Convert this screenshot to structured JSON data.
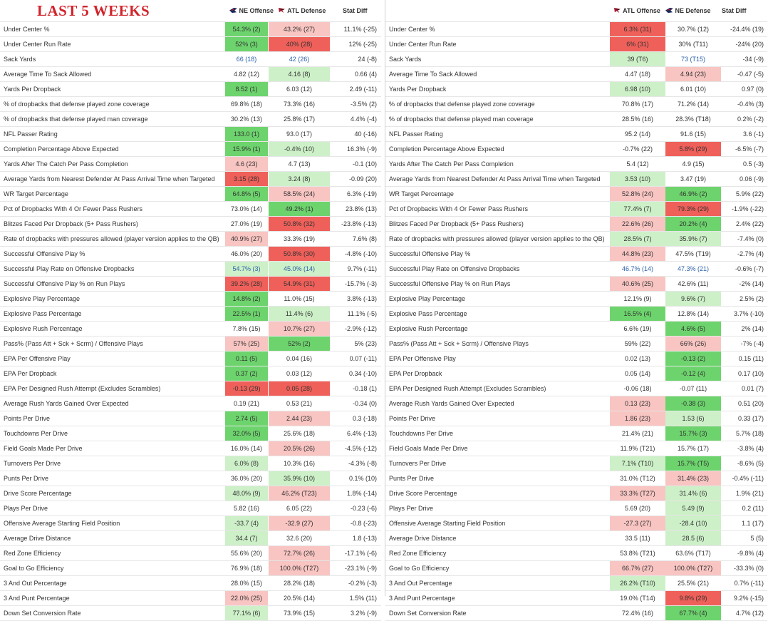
{
  "title": "LAST 5 WEEKS",
  "colors": {
    "dark_green": "#6dd46d",
    "light_green": "#cdf0c8",
    "dark_red": "#f0605a",
    "light_red": "#f8c5c2",
    "text_blue": "#2a5fa8"
  },
  "left": {
    "headers": {
      "offense": "NE Offense",
      "defense": "ATL Defense",
      "diff": "Stat Diff"
    },
    "rows": [
      {
        "label": "Under Center %",
        "off": "54.3% (2)",
        "off_c": "dg",
        "def": "43.2% (27)",
        "def_c": "lr",
        "diff": "11.1% (-25)"
      },
      {
        "label": "Under Center Run Rate",
        "off": "52% (3)",
        "off_c": "dg",
        "def": "40% (28)",
        "def_c": "dr",
        "diff": "12% (-25)"
      },
      {
        "label": "Sack Yards",
        "off": "66 (18)",
        "off_c": "",
        "off_blue": true,
        "def": "42 (26)",
        "def_c": "",
        "def_blue": true,
        "diff": "24 (-8)"
      },
      {
        "label": "Average Time To Sack Allowed",
        "off": "4.82 (12)",
        "off_c": "",
        "def": "4.16 (8)",
        "def_c": "lg",
        "diff": "0.66 (4)"
      },
      {
        "label": "Yards Per Dropback",
        "off": "8.52 (1)",
        "off_c": "dg",
        "def": "6.03 (12)",
        "def_c": "",
        "diff": "2.49 (-11)"
      },
      {
        "label": "% of dropbacks that defense played zone coverage",
        "off": "69.8% (18)",
        "off_c": "",
        "def": "73.3% (16)",
        "def_c": "",
        "diff": "-3.5% (2)"
      },
      {
        "label": "% of dropbacks that defense played man coverage",
        "off": "30.2% (13)",
        "off_c": "",
        "def": "25.8% (17)",
        "def_c": "",
        "diff": "4.4% (-4)"
      },
      {
        "label": "NFL Passer Rating",
        "off": "133.0 (1)",
        "off_c": "dg",
        "def": "93.0 (17)",
        "def_c": "",
        "diff": "40 (-16)"
      },
      {
        "label": "Completion Percentage Above Expected",
        "off": "15.9% (1)",
        "off_c": "dg",
        "def": "-0.4% (10)",
        "def_c": "lg",
        "diff": "16.3% (-9)"
      },
      {
        "label": "Yards After The Catch Per Pass Completion",
        "off": "4.6 (23)",
        "off_c": "lr",
        "def": "4.7 (13)",
        "def_c": "",
        "diff": "-0.1 (10)"
      },
      {
        "label": "Average Yards from Nearest Defender At Pass Arrival Time when Targeted",
        "off": "3.15 (28)",
        "off_c": "dr",
        "def": "3.24 (8)",
        "def_c": "lg",
        "diff": "-0.09 (20)"
      },
      {
        "label": "WR Target Percentage",
        "off": "64.8% (5)",
        "off_c": "dg",
        "def": "58.5% (24)",
        "def_c": "lr",
        "diff": "6.3% (-19)"
      },
      {
        "label": "Pct of Dropbacks With 4 Or Fewer Pass Rushers",
        "off": "73.0% (14)",
        "off_c": "",
        "def": "49.2% (1)",
        "def_c": "dg",
        "diff": "23.8% (13)"
      },
      {
        "label": "Blitzes Faced Per Dropback (5+ Pass Rushers)",
        "off": "27.0% (19)",
        "off_c": "",
        "def": "50.8% (32)",
        "def_c": "dr",
        "diff": "-23.8% (-13)"
      },
      {
        "label": "Rate of dropbacks with pressures allowed (player version applies to the QB)",
        "off": "40.9% (27)",
        "off_c": "lr",
        "def": "33.3% (19)",
        "def_c": "",
        "diff": "7.6% (8)"
      },
      {
        "label": "Successful Offensive Play %",
        "off": "46.0% (20)",
        "off_c": "",
        "def": "50.8% (30)",
        "def_c": "dr",
        "diff": "-4.8% (-10)"
      },
      {
        "label": "Successful Play Rate on Offensive Dropbacks",
        "off": "54.7% (3)",
        "off_c": "lg",
        "off_blue": true,
        "def": "45.0% (14)",
        "def_c": "lg",
        "def_blue": true,
        "diff": "9.7% (-11)"
      },
      {
        "label": "Successful Offensive Play % on Run Plays",
        "off": "39.2% (28)",
        "off_c": "dr",
        "def": "54.9% (31)",
        "def_c": "dr",
        "diff": "-15.7% (-3)"
      },
      {
        "label": "Explosive Play Percentage",
        "off": "14.8% (2)",
        "off_c": "dg",
        "def": "11.0% (15)",
        "def_c": "",
        "diff": "3.8% (-13)"
      },
      {
        "label": "Explosive Pass Percentage",
        "off": "22.5% (1)",
        "off_c": "dg",
        "def": "11.4% (6)",
        "def_c": "lg",
        "diff": "11.1% (-5)"
      },
      {
        "label": "Explosive Rush Percentage",
        "off": "7.8% (15)",
        "off_c": "",
        "def": "10.7% (27)",
        "def_c": "lr",
        "diff": "-2.9% (-12)"
      },
      {
        "label": "Pass% (Pass Att + Sck + Scrm) / Offensive Plays",
        "off": "57% (25)",
        "off_c": "lr",
        "def": "52% (2)",
        "def_c": "dg",
        "diff": "5% (23)"
      },
      {
        "label": "EPA Per Offensive Play",
        "off": "0.11 (5)",
        "off_c": "dg",
        "def": "0.04 (16)",
        "def_c": "",
        "diff": "0.07 (-11)"
      },
      {
        "label": "EPA Per Dropback",
        "off": "0.37 (2)",
        "off_c": "dg",
        "def": "0.03 (12)",
        "def_c": "",
        "diff": "0.34 (-10)"
      },
      {
        "label": "EPA Per Designed Rush Attempt (Excludes Scrambles)",
        "off": "-0.13 (29)",
        "off_c": "dr",
        "def": "0.05 (28)",
        "def_c": "dr",
        "diff": "-0.18 (1)"
      },
      {
        "label": "Average Rush Yards Gained Over Expected",
        "off": "0.19 (21)",
        "off_c": "",
        "def": "0.53 (21)",
        "def_c": "",
        "diff": "-0.34 (0)"
      },
      {
        "label": "Points Per Drive",
        "off": "2.74 (5)",
        "off_c": "dg",
        "def": "2.44 (23)",
        "def_c": "lr",
        "diff": "0.3 (-18)"
      },
      {
        "label": "Touchdowns Per Drive",
        "off": "32.0% (5)",
        "off_c": "dg",
        "def": "25.6% (18)",
        "def_c": "",
        "diff": "6.4% (-13)"
      },
      {
        "label": "Field Goals Made Per Drive",
        "off": "16.0% (14)",
        "off_c": "",
        "def": "20.5% (26)",
        "def_c": "lr",
        "diff": "-4.5% (-12)"
      },
      {
        "label": "Turnovers Per Drive",
        "off": "6.0% (8)",
        "off_c": "lg",
        "def": "10.3% (16)",
        "def_c": "",
        "diff": "-4.3% (-8)"
      },
      {
        "label": "Punts Per Drive",
        "off": "36.0% (20)",
        "off_c": "",
        "def": "35.9% (10)",
        "def_c": "lg",
        "diff": "0.1% (10)"
      },
      {
        "label": "Drive Score Percentage",
        "off": "48.0% (9)",
        "off_c": "lg",
        "def": "46.2% (T23)",
        "def_c": "lr",
        "diff": "1.8% (-14)"
      },
      {
        "label": "Plays Per Drive",
        "off": "5.82 (16)",
        "off_c": "",
        "def": "6.05 (22)",
        "def_c": "",
        "diff": "-0.23 (-6)"
      },
      {
        "label": "Offensive Average Starting Field Position",
        "off": "-33.7 (4)",
        "off_c": "lg",
        "def": "-32.9 (27)",
        "def_c": "lr",
        "diff": "-0.8 (-23)"
      },
      {
        "label": "Average Drive Distance",
        "off": "34.4 (7)",
        "off_c": "lg",
        "def": "32.6 (20)",
        "def_c": "",
        "diff": "1.8 (-13)"
      },
      {
        "label": "Red Zone Efficiency",
        "off": "55.6% (20)",
        "off_c": "",
        "def": "72.7% (26)",
        "def_c": "lr",
        "diff": "-17.1% (-6)"
      },
      {
        "label": "Goal to Go Efficiency",
        "off": "76.9% (18)",
        "off_c": "",
        "def": "100.0% (T27)",
        "def_c": "lr",
        "diff": "-23.1% (-9)"
      },
      {
        "label": "3 And Out Percentage",
        "off": "28.0% (15)",
        "off_c": "",
        "def": "28.2% (18)",
        "def_c": "",
        "diff": "-0.2% (-3)"
      },
      {
        "label": "3 And Punt Percentage",
        "off": "22.0% (25)",
        "off_c": "lr",
        "def": "20.5% (14)",
        "def_c": "",
        "diff": "1.5% (11)"
      },
      {
        "label": "Down Set Conversion Rate",
        "off": "77.1% (6)",
        "off_c": "lg",
        "def": "73.9% (15)",
        "def_c": "",
        "diff": "3.2% (-9)"
      }
    ]
  },
  "right": {
    "headers": {
      "offense": "ATL Offense",
      "defense": "NE Defense",
      "diff": "Stat Diff"
    },
    "rows": [
      {
        "label": "Under Center %",
        "off": "6.3% (31)",
        "off_c": "dr",
        "def": "30.7% (12)",
        "def_c": "",
        "diff": "-24.4% (19)"
      },
      {
        "label": "Under Center Run Rate",
        "off": "6% (31)",
        "off_c": "dr",
        "def": "30% (T11)",
        "def_c": "",
        "diff": "-24% (20)"
      },
      {
        "label": "Sack Yards",
        "off": "39 (T6)",
        "off_c": "lg",
        "def": "73 (T15)",
        "def_c": "",
        "def_blue": true,
        "diff": "-34 (-9)"
      },
      {
        "label": "Average Time To Sack Allowed",
        "off": "4.47 (18)",
        "off_c": "",
        "def": "4.94 (23)",
        "def_c": "lr",
        "diff": "-0.47 (-5)"
      },
      {
        "label": "Yards Per Dropback",
        "off": "6.98 (10)",
        "off_c": "lg",
        "def": "6.01 (10)",
        "def_c": "",
        "diff": "0.97 (0)"
      },
      {
        "label": "% of dropbacks that defense played zone coverage",
        "off": "70.8% (17)",
        "off_c": "",
        "def": "71.2% (14)",
        "def_c": "",
        "diff": "-0.4% (3)"
      },
      {
        "label": "% of dropbacks that defense played man coverage",
        "off": "28.5% (16)",
        "off_c": "",
        "def": "28.3% (T18)",
        "def_c": "",
        "diff": "0.2% (-2)"
      },
      {
        "label": "NFL Passer Rating",
        "off": "95.2 (14)",
        "off_c": "",
        "def": "91.6 (15)",
        "def_c": "",
        "diff": "3.6 (-1)"
      },
      {
        "label": "Completion Percentage Above Expected",
        "off": "-0.7% (22)",
        "off_c": "",
        "def": "5.8% (29)",
        "def_c": "dr",
        "diff": "-6.5% (-7)"
      },
      {
        "label": "Yards After The Catch Per Pass Completion",
        "off": "5.4 (12)",
        "off_c": "",
        "def": "4.9 (15)",
        "def_c": "",
        "diff": "0.5 (-3)"
      },
      {
        "label": "Average Yards from Nearest Defender At Pass Arrival Time when Targeted",
        "off": "3.53 (10)",
        "off_c": "lg",
        "def": "3.47 (19)",
        "def_c": "",
        "diff": "0.06 (-9)"
      },
      {
        "label": "WR Target Percentage",
        "off": "52.8% (24)",
        "off_c": "lr",
        "def": "46.9% (2)",
        "def_c": "dg",
        "diff": "5.9% (22)"
      },
      {
        "label": "Pct of Dropbacks With 4 Or Fewer Pass Rushers",
        "off": "77.4% (7)",
        "off_c": "lg",
        "def": "79.3% (29)",
        "def_c": "dr",
        "diff": "-1.9% (-22)"
      },
      {
        "label": "Blitzes Faced Per Dropback (5+ Pass Rushers)",
        "off": "22.6% (26)",
        "off_c": "lr",
        "def": "20.2% (4)",
        "def_c": "dg",
        "diff": "2.4% (22)"
      },
      {
        "label": "Rate of dropbacks with pressures allowed (player version applies to the QB)",
        "off": "28.5% (7)",
        "off_c": "lg",
        "def": "35.9% (7)",
        "def_c": "lg",
        "diff": "-7.4% (0)"
      },
      {
        "label": "Successful Offensive Play %",
        "off": "44.8% (23)",
        "off_c": "lr",
        "def": "47.5% (T19)",
        "def_c": "",
        "diff": "-2.7% (4)"
      },
      {
        "label": "Successful Play Rate on Offensive Dropbacks",
        "off": "46.7% (14)",
        "off_c": "",
        "off_blue": true,
        "def": "47.3% (21)",
        "def_c": "",
        "def_blue": true,
        "diff": "-0.6% (-7)"
      },
      {
        "label": "Successful Offensive Play % on Run Plays",
        "off": "40.6% (25)",
        "off_c": "lr",
        "def": "42.6% (11)",
        "def_c": "",
        "diff": "-2% (14)"
      },
      {
        "label": "Explosive Play Percentage",
        "off": "12.1% (9)",
        "off_c": "",
        "def": "9.6% (7)",
        "def_c": "lg",
        "diff": "2.5% (2)"
      },
      {
        "label": "Explosive Pass Percentage",
        "off": "16.5% (4)",
        "off_c": "dg",
        "def": "12.8% (14)",
        "def_c": "",
        "diff": "3.7% (-10)"
      },
      {
        "label": "Explosive Rush Percentage",
        "off": "6.6% (19)",
        "off_c": "",
        "def": "4.6% (5)",
        "def_c": "dg",
        "diff": "2% (14)"
      },
      {
        "label": "Pass% (Pass Att + Sck + Scrm) / Offensive Plays",
        "off": "59% (22)",
        "off_c": "",
        "def": "66% (26)",
        "def_c": "lr",
        "diff": "-7% (-4)"
      },
      {
        "label": "EPA Per Offensive Play",
        "off": "0.02 (13)",
        "off_c": "",
        "def": "-0.13 (2)",
        "def_c": "dg",
        "diff": "0.15 (11)"
      },
      {
        "label": "EPA Per Dropback",
        "off": "0.05 (14)",
        "off_c": "",
        "def": "-0.12 (4)",
        "def_c": "dg",
        "diff": "0.17 (10)"
      },
      {
        "label": "EPA Per Designed Rush Attempt (Excludes Scrambles)",
        "off": "-0.06 (18)",
        "off_c": "",
        "def": "-0.07 (11)",
        "def_c": "",
        "diff": "0.01 (7)"
      },
      {
        "label": "Average Rush Yards Gained Over Expected",
        "off": "0.13 (23)",
        "off_c": "lr",
        "def": "-0.38 (3)",
        "def_c": "dg",
        "diff": "0.51 (20)"
      },
      {
        "label": "Points Per Drive",
        "off": "1.86 (23)",
        "off_c": "lr",
        "def": "1.53 (6)",
        "def_c": "lg",
        "diff": "0.33 (17)"
      },
      {
        "label": "Touchdowns Per Drive",
        "off": "21.4% (21)",
        "off_c": "",
        "def": "15.7% (3)",
        "def_c": "dg",
        "diff": "5.7% (18)"
      },
      {
        "label": "Field Goals Made Per Drive",
        "off": "11.9% (T21)",
        "off_c": "",
        "def": "15.7% (17)",
        "def_c": "",
        "diff": "-3.8% (4)"
      },
      {
        "label": "Turnovers Per Drive",
        "off": "7.1% (T10)",
        "off_c": "lg",
        "def": "15.7% (T5)",
        "def_c": "dg",
        "diff": "-8.6% (5)"
      },
      {
        "label": "Punts Per Drive",
        "off": "31.0% (T12)",
        "off_c": "",
        "def": "31.4% (23)",
        "def_c": "lr",
        "diff": "-0.4% (-11)"
      },
      {
        "label": "Drive Score Percentage",
        "off": "33.3% (T27)",
        "off_c": "lr",
        "def": "31.4% (6)",
        "def_c": "lg",
        "diff": "1.9% (21)"
      },
      {
        "label": "Plays Per Drive",
        "off": "5.69 (20)",
        "off_c": "",
        "def": "5.49 (9)",
        "def_c": "lg",
        "diff": "0.2 (11)"
      },
      {
        "label": "Offensive Average Starting Field Position",
        "off": "-27.3 (27)",
        "off_c": "lr",
        "def": "-28.4 (10)",
        "def_c": "lg",
        "diff": "1.1 (17)"
      },
      {
        "label": "Average Drive Distance",
        "off": "33.5 (11)",
        "off_c": "",
        "def": "28.5 (6)",
        "def_c": "lg",
        "diff": "5 (5)"
      },
      {
        "label": "Red Zone Efficiency",
        "off": "53.8% (T21)",
        "off_c": "",
        "def": "63.6% (T17)",
        "def_c": "",
        "diff": "-9.8% (4)"
      },
      {
        "label": "Goal to Go Efficiency",
        "off": "66.7% (27)",
        "off_c": "lr",
        "def": "100.0% (T27)",
        "def_c": "lr",
        "diff": "-33.3% (0)"
      },
      {
        "label": "3 And Out Percentage",
        "off": "26.2% (T10)",
        "off_c": "lg",
        "def": "25.5% (21)",
        "def_c": "",
        "diff": "0.7% (-11)"
      },
      {
        "label": "3 And Punt Percentage",
        "off": "19.0% (T14)",
        "off_c": "",
        "def": "9.8% (29)",
        "def_c": "dr",
        "diff": "9.2% (-15)"
      },
      {
        "label": "Down Set Conversion Rate",
        "off": "72.4% (16)",
        "off_c": "",
        "def": "67.7% (4)",
        "def_c": "dg",
        "diff": "4.7% (12)"
      }
    ]
  }
}
